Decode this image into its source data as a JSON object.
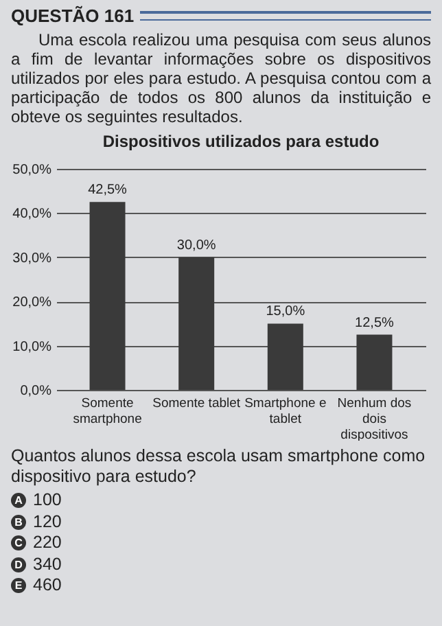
{
  "chart_data": {
    "type": "bar",
    "title": "Dispositivos utilizados para estudo",
    "annotations": [
      "QUESTÃO 161",
      "Uma escola realizou uma pesquisa com seus alunos a fim de levantar informações sobre os dispositivos utilizados por eles para estudo. A pesquisa contou com a participação de todos os 800 alunos da instituição e obteve os seguintes resultados.",
      "Quantos alunos dessa escola usam smartphone como dispositivo para estudo?",
      "A 100",
      "B 120",
      "C 220",
      "D 340",
      "E 460"
    ],
    "categories": [
      "Somente smartphone",
      "Somente tablet",
      "Smartphone e tablet",
      "Nenhum dos dois dispositivos"
    ],
    "values": [
      42.5,
      30.0,
      15.0,
      12.5
    ],
    "value_labels": [
      "42,5%",
      "30,0%",
      "15,0%",
      "12,5%"
    ],
    "color": "#3a3a3a",
    "ylim": [
      0,
      50
    ],
    "yticks": [
      {
        "value": 0,
        "label": "0,0%"
      },
      {
        "value": 10,
        "label": "10,0%"
      },
      {
        "value": 20,
        "label": "20,0%"
      },
      {
        "value": 30,
        "label": "30,0%"
      },
      {
        "value": 40,
        "label": "40,0%"
      },
      {
        "value": 50,
        "label": "50,0%"
      }
    ],
    "grid": true
  }
}
